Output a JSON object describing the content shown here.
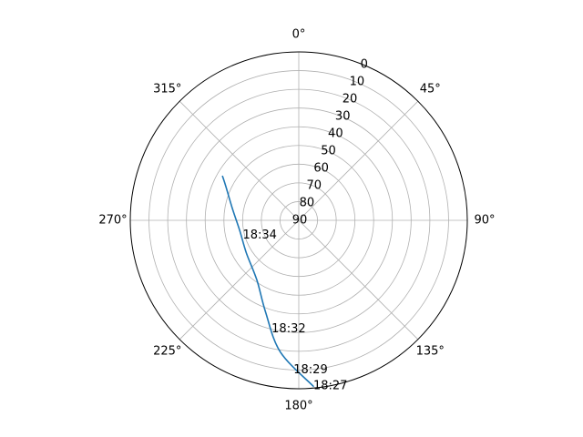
{
  "chart_data": {
    "type": "polar-line",
    "title": "",
    "theta_zero_location": "N",
    "theta_direction": "clockwise",
    "r_axis": {
      "inverted": true,
      "range": [
        0,
        90
      ],
      "ticks": [
        0,
        10,
        20,
        30,
        40,
        50,
        60,
        70,
        80,
        90
      ],
      "tick_labels": [
        "0",
        "10",
        "20",
        "30",
        "40",
        "50",
        "60",
        "70",
        "80",
        "90"
      ]
    },
    "theta_axis": {
      "ticks_deg": [
        0,
        45,
        90,
        135,
        180,
        225,
        270,
        315
      ],
      "tick_labels": [
        "0°",
        "45°",
        "90°",
        "135°",
        "180°",
        "225°",
        "270°",
        "315°"
      ]
    },
    "grid": true,
    "legend": "none",
    "series": [
      {
        "color": "#1f77b4",
        "points": [
          {
            "azimuth_deg": 175,
            "elevation_deg": 1
          },
          {
            "azimuth_deg": 188,
            "elevation_deg": 19
          },
          {
            "azimuth_deg": 200,
            "elevation_deg": 38
          },
          {
            "azimuth_deg": 215,
            "elevation_deg": 51
          },
          {
            "azimuth_deg": 238,
            "elevation_deg": 57
          },
          {
            "azimuth_deg": 260,
            "elevation_deg": 58
          },
          {
            "azimuth_deg": 280,
            "elevation_deg": 54
          },
          {
            "azimuth_deg": 295,
            "elevation_deg": 47
          },
          {
            "azimuth_deg": 300,
            "elevation_deg": 43
          }
        ]
      }
    ],
    "time_labels": [
      {
        "text": "18:27",
        "azimuth_deg": 175,
        "elevation_deg": 1
      },
      {
        "text": "18:29",
        "azimuth_deg": 182,
        "elevation_deg": 10
      },
      {
        "text": "18:32",
        "azimuth_deg": 194,
        "elevation_deg": 30
      },
      {
        "text": "18:34",
        "azimuth_deg": 255,
        "elevation_deg": 59
      }
    ]
  }
}
